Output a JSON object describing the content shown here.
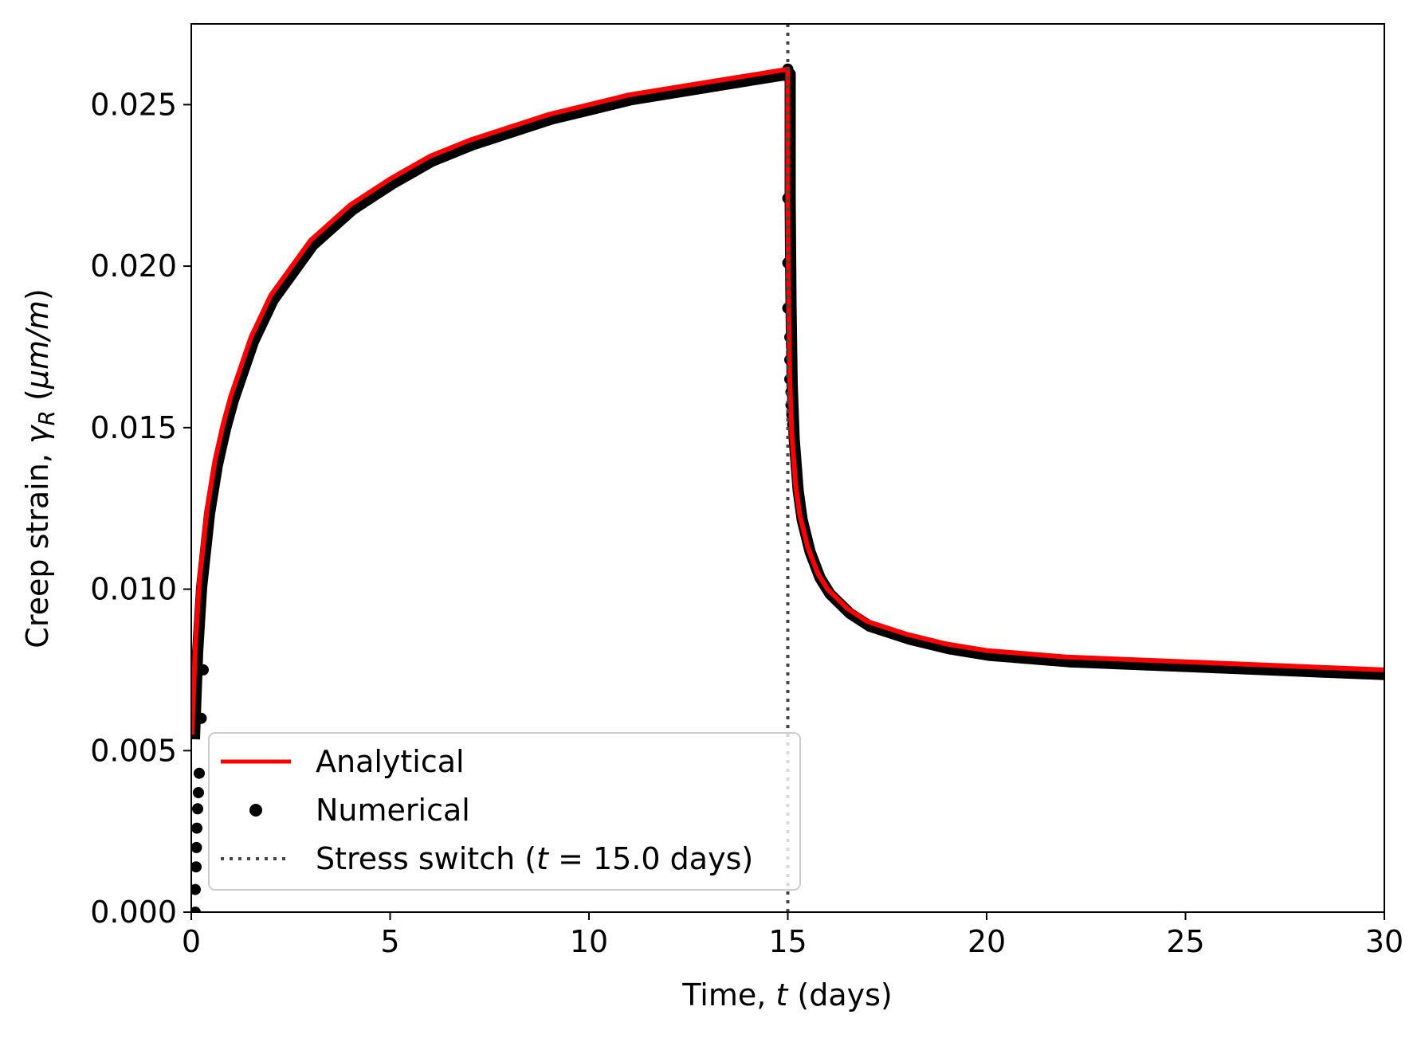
{
  "chart_data": {
    "type": "line",
    "xlabel": "Time, t (days)",
    "ylabel": "Creep strain, γR (μm/m)",
    "xlim": [
      0,
      30
    ],
    "ylim": [
      0,
      0.0275
    ],
    "x_ticks": [
      "0",
      "5",
      "10",
      "15",
      "20",
      "25",
      "30"
    ],
    "y_ticks": [
      "0.000",
      "0.005",
      "0.010",
      "0.015",
      "0.020",
      "0.025"
    ],
    "grid": false,
    "legend_position": "lower-left",
    "series": [
      {
        "name": "Analytical",
        "style": "line",
        "color": "#ff0000",
        "x": [
          0.02,
          0.1,
          0.2,
          0.4,
          0.6,
          0.8,
          1.0,
          1.5,
          2.0,
          3.0,
          4.0,
          5.0,
          6.0,
          7.0,
          8.0,
          9.0,
          10.0,
          11.0,
          12.0,
          13.0,
          14.0,
          15.0,
          15.0,
          15.02,
          15.05,
          15.1,
          15.2,
          15.3,
          15.5,
          15.75,
          16.0,
          16.5,
          17.0,
          18.0,
          19.0,
          20.0,
          22.0,
          24.0,
          26.0,
          28.0,
          30.0
        ],
        "y": [
          0.0055,
          0.0082,
          0.0102,
          0.0125,
          0.014,
          0.0151,
          0.016,
          0.0178,
          0.0191,
          0.0208,
          0.0219,
          0.0227,
          0.0234,
          0.0239,
          0.0243,
          0.0247,
          0.025,
          0.0253,
          0.0255,
          0.0257,
          0.0259,
          0.0261,
          0.0222,
          0.019,
          0.0165,
          0.0148,
          0.0132,
          0.0123,
          0.0113,
          0.0105,
          0.01,
          0.0094,
          0.009,
          0.0086,
          0.0083,
          0.0081,
          0.0079,
          0.0078,
          0.0077,
          0.0076,
          0.0075
        ]
      },
      {
        "name": "Numerical",
        "style": "markers",
        "color": "#000000",
        "x": [
          0.1,
          0.1,
          0.12,
          0.13,
          0.14,
          0.16,
          0.18,
          0.2,
          0.25,
          0.3,
          15.0,
          15.0,
          15.0,
          15.0,
          15.05,
          15.05,
          15.05,
          15.08,
          15.08,
          15.1,
          15.12
        ],
        "y": [
          0.0,
          0.0007,
          0.0014,
          0.002,
          0.0026,
          0.0032,
          0.0037,
          0.0043,
          0.006,
          0.0075,
          0.0261,
          0.0221,
          0.0201,
          0.0187,
          0.0178,
          0.0171,
          0.0165,
          0.0161,
          0.0157,
          0.0154,
          0.0151
        ]
      },
      {
        "name": "Stress switch (t = 15.0 days)",
        "style": "dotted-vline",
        "color": "#444444",
        "x_value": 15.0
      }
    ]
  }
}
